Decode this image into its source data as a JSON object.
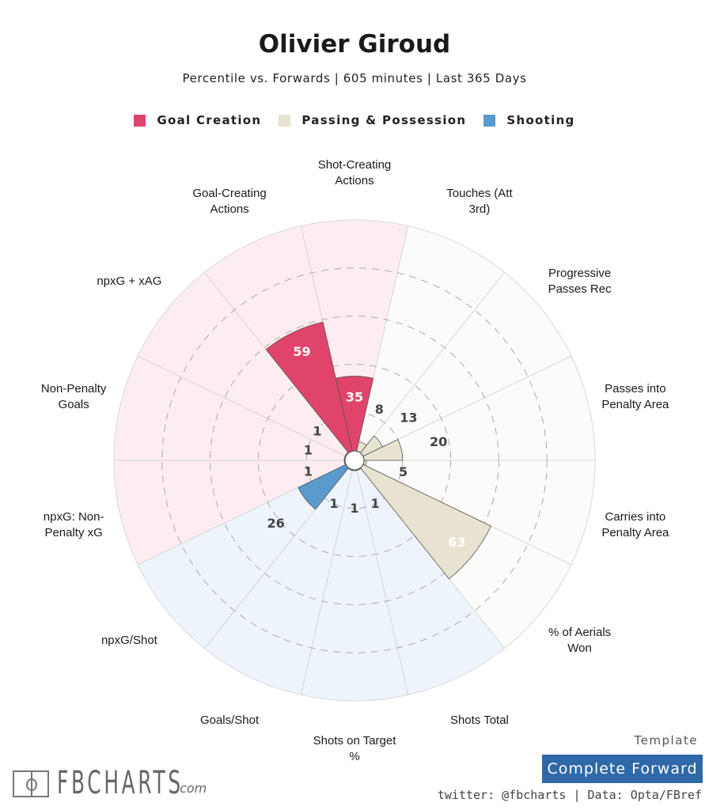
{
  "chart_data": {
    "type": "pizza",
    "title": "Olivier Giroud",
    "subtitle": "Percentile vs. Forwards | 605 minutes | Last 365 Days",
    "value_range": [
      0,
      100
    ],
    "rings": [
      20,
      40,
      60,
      80
    ],
    "legend": [
      {
        "name": "Goal Creation",
        "color": "#e0446a",
        "bg": "#fdedf1"
      },
      {
        "name": "Passing & Possession",
        "color": "#e8e2d1",
        "bg": "#fbfbfa"
      },
      {
        "name": "Shooting",
        "color": "#5a9acd",
        "bg": "#eef4fb"
      }
    ],
    "slices": [
      {
        "label_lines": [
          "Shot-Creating",
          "Actions"
        ],
        "value": 35,
        "group": 0
      },
      {
        "label_lines": [
          "Touches (Att",
          "3rd)"
        ],
        "value": 8,
        "group": 1
      },
      {
        "label_lines": [
          "Progressive",
          "Passes Rec"
        ],
        "value": 13,
        "group": 1
      },
      {
        "label_lines": [
          "Passes into",
          "Penalty Area"
        ],
        "value": 20,
        "group": 1
      },
      {
        "label_lines": [
          "Carries into",
          "Penalty Area"
        ],
        "value": 5,
        "group": 1
      },
      {
        "label_lines": [
          "% of Aerials",
          "Won"
        ],
        "value": 63,
        "group": 1
      },
      {
        "label_lines": [
          "Shots Total"
        ],
        "value": 1,
        "group": 2
      },
      {
        "label_lines": [
          "Shots on Target",
          "%"
        ],
        "value": 1,
        "group": 2
      },
      {
        "label_lines": [
          "Goals/Shot"
        ],
        "value": 1,
        "group": 2
      },
      {
        "label_lines": [
          "npxG/Shot"
        ],
        "value": 26,
        "group": 2
      },
      {
        "label_lines": [
          "npxG: Non-",
          "Penalty xG"
        ],
        "value": 1,
        "group": 0
      },
      {
        "label_lines": [
          "Non-Penalty",
          "Goals"
        ],
        "value": 1,
        "group": 0
      },
      {
        "label_lines": [
          "npxG + xAG"
        ],
        "value": 1,
        "group": 0
      },
      {
        "label_lines": [
          "Goal-Creating",
          "Actions"
        ],
        "value": 59,
        "group": 0
      }
    ]
  },
  "footer": {
    "template_label": "Template",
    "template_name": "Complete Forward",
    "credits": "twitter: @fbcharts | Data: Opta/FBref",
    "logo_text": "FBCHARTS",
    "logo_suffix": ".com"
  }
}
